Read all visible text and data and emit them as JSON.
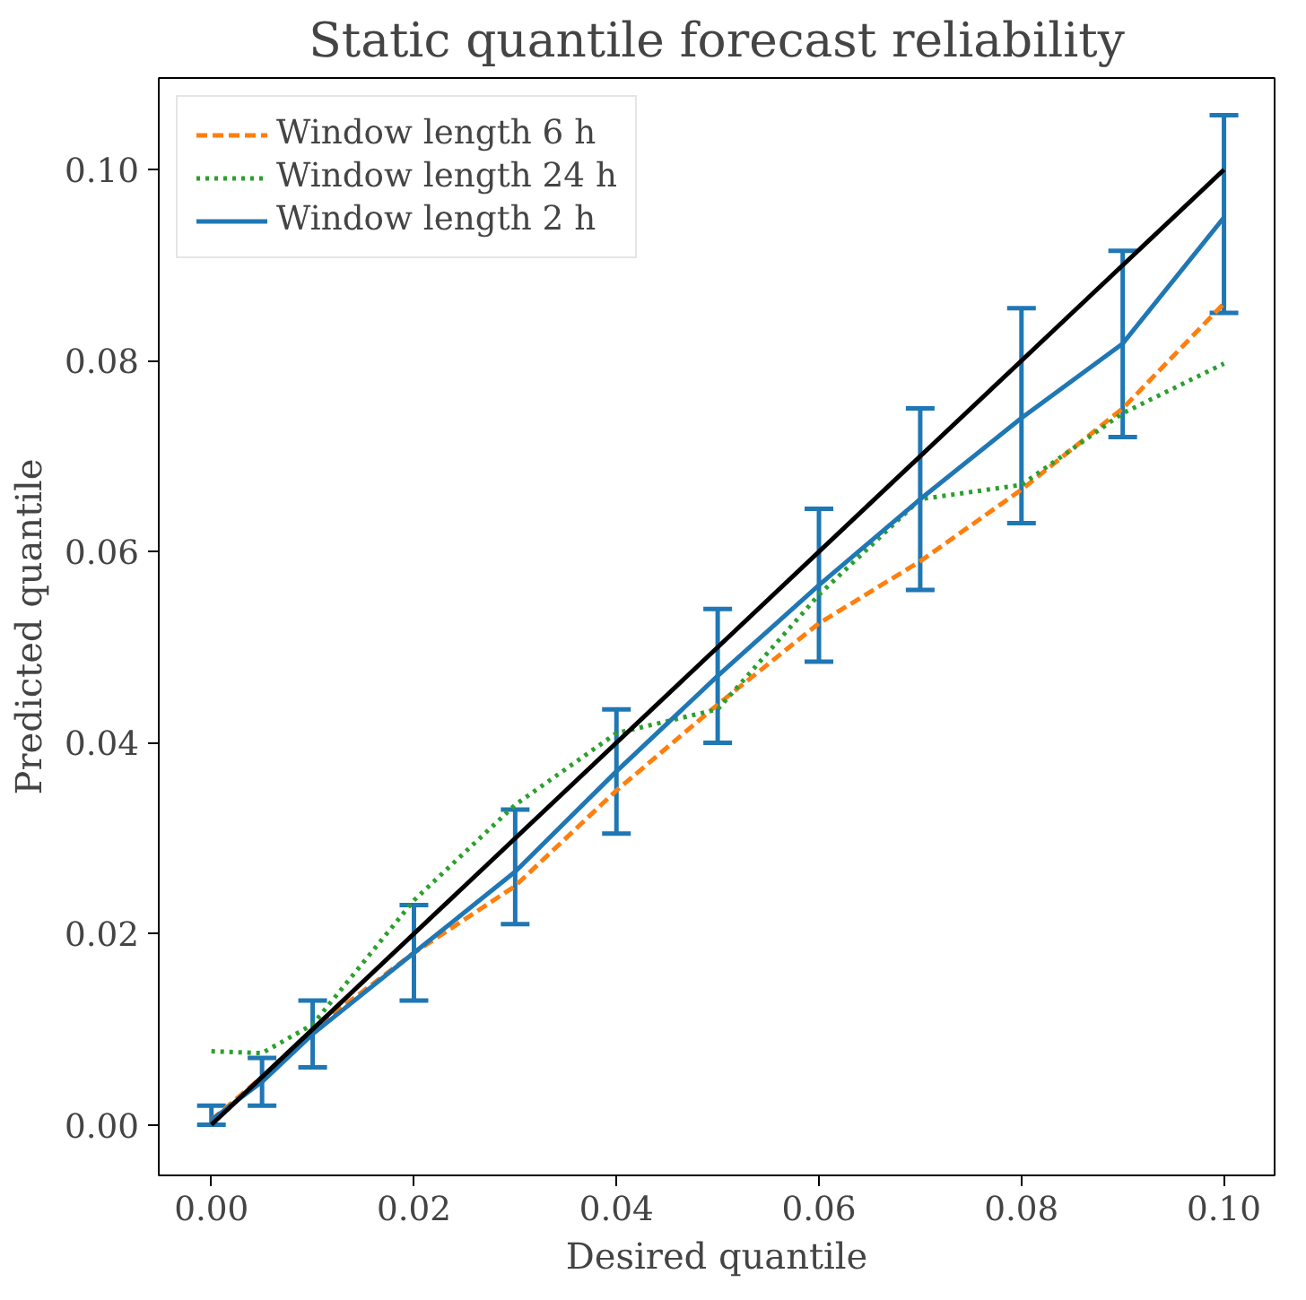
{
  "chart_data": {
    "type": "line",
    "title": "Static quantile forecast reliability",
    "xlabel": "Desired quantile",
    "ylabel": "Predicted quantile",
    "x": [
      0,
      0.005,
      0.01,
      0.02,
      0.03,
      0.04,
      0.05,
      0.06,
      0.07,
      0.08,
      0.09,
      0.1
    ],
    "series": [
      {
        "name": "Window length 6 h",
        "color": "#ff7f0e",
        "line_style": "dashed",
        "values": [
          0.0005,
          0.005,
          0.01,
          0.018,
          0.025,
          0.035,
          0.044,
          0.0525,
          0.059,
          0.0665,
          0.075,
          0.086
        ]
      },
      {
        "name": "Window length 24 h",
        "color": "#2ca02c",
        "line_style": "dotted",
        "values": [
          0.0077,
          0.0075,
          0.0105,
          0.0235,
          0.0335,
          0.041,
          0.0435,
          0.0555,
          0.0655,
          0.067,
          0.0745,
          0.0797
        ]
      },
      {
        "name": "Window length 2 h",
        "color": "#1f77b4",
        "line_style": "solid",
        "values": [
          0.0005,
          0.0045,
          0.0095,
          0.018,
          0.0265,
          0.037,
          0.047,
          0.0565,
          0.0655,
          0.074,
          0.0818,
          0.095
        ],
        "errors": [
          [
            0,
            0.002
          ],
          [
            0.002,
            0.007
          ],
          [
            0.006,
            0.013
          ],
          [
            0.013,
            0.023
          ],
          [
            0.021,
            0.033
          ],
          [
            0.0305,
            0.0435
          ],
          [
            0.04,
            0.054
          ],
          [
            0.0485,
            0.0645
          ],
          [
            0.056,
            0.075
          ],
          [
            0.063,
            0.0855
          ],
          [
            0.072,
            0.0915
          ],
          [
            0.085,
            0.1057
          ]
        ]
      },
      {
        "color": "#000000",
        "line_style": "solid",
        "x": [
          0,
          0.1
        ],
        "values": [
          0,
          0.1
        ]
      }
    ],
    "xlim": [
      -0.0052,
      0.105
    ],
    "ylim": [
      -0.0053,
      0.1096
    ],
    "xticks": [
      {
        "value": 0,
        "label": "0.00"
      },
      {
        "value": 0.02,
        "label": "0.02"
      },
      {
        "value": 0.04,
        "label": "0.04"
      },
      {
        "value": 0.06,
        "label": "0.06"
      },
      {
        "value": 0.08,
        "label": "0.08"
      },
      {
        "value": 0.1,
        "label": "0.10"
      }
    ],
    "yticks": [
      {
        "value": 0,
        "label": "0.00"
      },
      {
        "value": 0.02,
        "label": "0.02"
      },
      {
        "value": 0.04,
        "label": "0.04"
      },
      {
        "value": 0.06,
        "label": "0.06"
      },
      {
        "value": 0.08,
        "label": "0.08"
      },
      {
        "value": 0.1,
        "label": "0.10"
      }
    ],
    "grid": false,
    "legend": "top left"
  }
}
